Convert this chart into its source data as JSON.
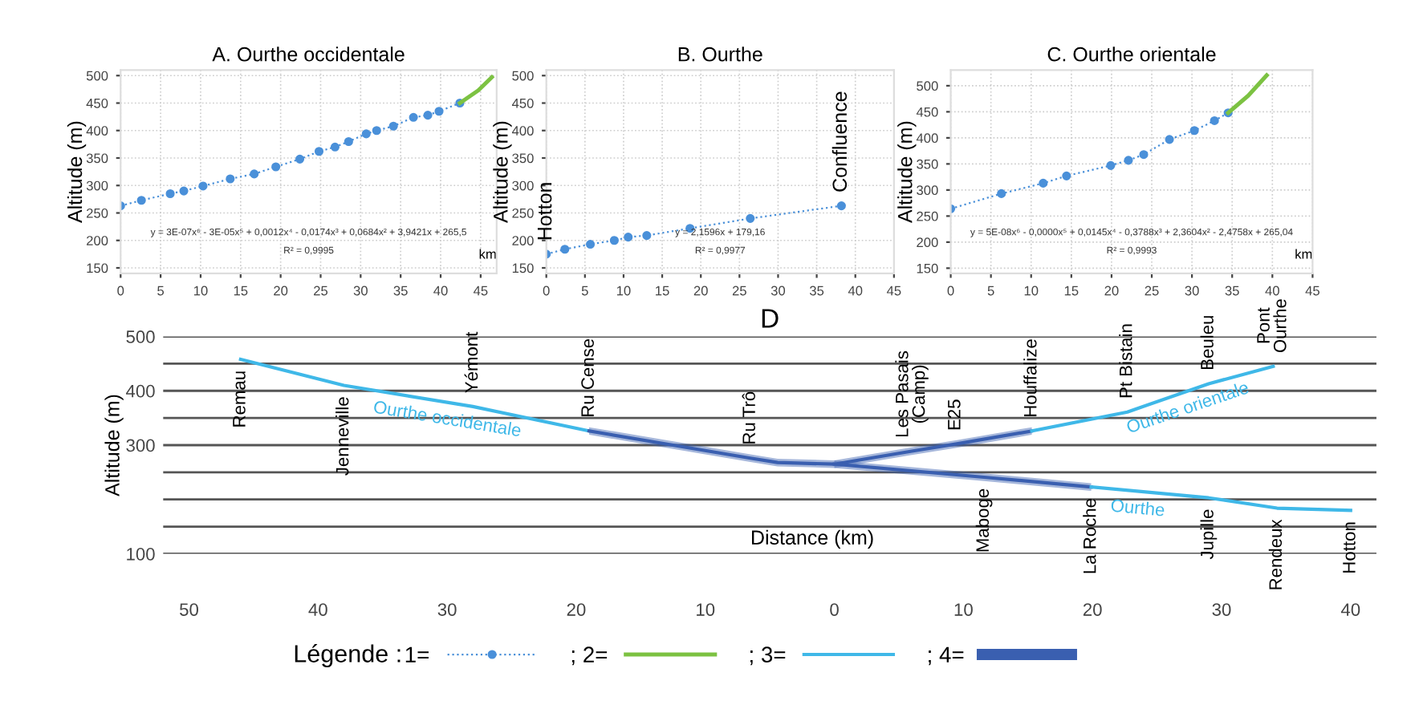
{
  "chart_data": [
    {
      "type": "line",
      "title": "A. Ourthe occidentale",
      "legend": "bottom",
      "xlabel": "km",
      "ylabel": "Altitude (m)",
      "xlim": [
        0,
        47
      ],
      "ylim": [
        140,
        510
      ],
      "xticks": [
        0,
        5,
        10,
        15,
        20,
        25,
        30,
        35,
        40,
        45
      ],
      "yticks": [
        150,
        200,
        250,
        300,
        350,
        400,
        450,
        500
      ],
      "grid": true,
      "annotations": [
        "y = 3E-07x⁶ - 3E-05x⁵ + 0,0012x⁴ - 0,0174x³ + 0,0684x² + 3,9421x + 265,5",
        "R² = 0,9995"
      ],
      "series": [
        {
          "name": "1=",
          "color": "#4a90d9",
          "marker": "circle",
          "line_style": "dotted",
          "x": [
            0,
            2.6,
            6.2,
            7.9,
            10.3,
            13.7,
            16.7,
            19.4,
            22.4,
            24.8,
            26.8,
            28.5,
            30.7,
            32.0,
            34.1,
            36.6,
            38.4,
            39.8,
            42.4
          ],
          "values": [
            263,
            273,
            285,
            290,
            299,
            312,
            321,
            334,
            348,
            362,
            370,
            380,
            394,
            400,
            408,
            424,
            428,
            435,
            450
          ]
        },
        {
          "name": "; 2=",
          "color": "#7cc242",
          "marker": "none",
          "line_style": "solid",
          "x": [
            42.4,
            44.7,
            46.4
          ],
          "values": [
            450,
            473,
            497
          ]
        }
      ]
    },
    {
      "type": "line",
      "title": "B. Ourthe",
      "ylabel": "Altitude (m)",
      "xlim": [
        0,
        45
      ],
      "ylim": [
        140,
        510
      ],
      "xticks": [
        0,
        5,
        10,
        15,
        20,
        25,
        30,
        35,
        40,
        45
      ],
      "yticks": [
        150,
        200,
        250,
        300,
        350,
        400,
        450,
        500
      ],
      "grid": true,
      "annotations": [
        {
          "text": "Hotton",
          "x": 0,
          "y": 175
        },
        {
          "text": "Confluence",
          "x": 38.2,
          "y": 263
        },
        "y = 2,1596x + 179,16",
        "R² = 0,9977"
      ],
      "series": [
        {
          "color": "#4a90d9",
          "marker": "circle",
          "line_style": "dotted",
          "x": [
            0,
            2.4,
            5.7,
            8.8,
            10.6,
            13.0,
            18.6,
            26.4,
            38.2
          ],
          "values": [
            175,
            184,
            193,
            200,
            206,
            209,
            222,
            240,
            263
          ]
        }
      ]
    },
    {
      "type": "line",
      "title": "C. Ourthe orientale",
      "xlabel": "km",
      "ylabel": "Altitude (m)",
      "xlim": [
        0,
        45
      ],
      "ylim": [
        140,
        530
      ],
      "xticks": [
        0,
        5,
        10,
        15,
        20,
        25,
        30,
        35,
        40,
        45
      ],
      "yticks": [
        150,
        200,
        250,
        300,
        350,
        400,
        450,
        500
      ],
      "grid": true,
      "annotations": [
        "y = 5E-08x⁶ - 0,0000x⁵ + 0,0145x⁴ - 0,3788x³ + 2,3604x² - 2,4758x + 265,04",
        "R² = 0,9993"
      ],
      "series": [
        {
          "color": "#4a90d9",
          "marker": "circle",
          "line_style": "dotted",
          "x": [
            0,
            6.3,
            11.5,
            14.4,
            19.9,
            22.1,
            24.0,
            27.2,
            30.3,
            32.8,
            34.5
          ],
          "values": [
            264,
            293,
            313,
            327,
            347,
            357,
            368,
            397,
            414,
            433,
            448
          ]
        },
        {
          "color": "#7cc242",
          "marker": "none",
          "line_style": "solid",
          "x": [
            34.5,
            37.0,
            39.3
          ],
          "values": [
            448,
            481,
            520
          ]
        }
      ]
    },
    {
      "type": "line",
      "title": "D",
      "xlabel": "Distance (km)",
      "ylabel": "Altitude (m)",
      "xlim": [
        -52,
        42
      ],
      "ylim": [
        100,
        500
      ],
      "grid": "y",
      "legend": "bottom",
      "legend_title": "Légende :",
      "xticks": [
        {
          "value": -50,
          "label": "50"
        },
        {
          "value": -40,
          "label": "40"
        },
        {
          "value": -30,
          "label": "30"
        },
        {
          "value": -20,
          "label": "20"
        },
        {
          "value": -10,
          "label": "10"
        },
        0,
        10,
        20,
        30,
        40
      ],
      "yticks": [
        100,
        {
          "value": 150,
          "label": null
        },
        {
          "value": 200,
          "label": null
        },
        {
          "value": 250,
          "label": null
        },
        300,
        {
          "value": 350,
          "label": null
        },
        400,
        {
          "value": 450,
          "label": null
        },
        500
      ],
      "annotations": [
        {
          "text": "Remau",
          "x": -46,
          "y": 458
        },
        {
          "text": "Jenneville",
          "x": -38,
          "y": 410
        },
        {
          "text": "Yémont",
          "x": -28,
          "y": 371
        },
        {
          "text": "Ru Cense",
          "x": -19,
          "y": 326
        },
        {
          "text": "Ru Trô",
          "x": -6.5,
          "y": 276
        },
        {
          "text": "Les Pasais\n(Camp)",
          "x": 6,
          "y": 289
        },
        {
          "text": "E25",
          "x": 9.4,
          "y": 302
        },
        {
          "text": "Houffalize",
          "x": 15.3,
          "y": 326
        },
        {
          "text": "Pt Bistain",
          "x": 22.7,
          "y": 361
        },
        {
          "text": "Beuleu",
          "x": 29,
          "y": 413
        },
        {
          "text": "Pont\nOurthe",
          "x": 34,
          "y": 445
        },
        {
          "text": "Maboge",
          "x": 11.6,
          "y": 241
        },
        {
          "text": "La Roche",
          "x": 19.9,
          "y": 223
        },
        {
          "text": "Jupille",
          "x": 29,
          "y": 203
        },
        {
          "text": "Rendeux",
          "x": 34.3,
          "y": 184
        },
        {
          "text": "Hotton",
          "x": 40,
          "y": 180
        },
        {
          "text": "Ourthe occidentale",
          "x": -30,
          "y": 379
        },
        {
          "text": "Ourthe orientale",
          "x": 27.4,
          "y": 400
        },
        {
          "text": "Ourthe",
          "x": 23.5,
          "y": 215
        }
      ],
      "series": [
        {
          "name": "; 3=",
          "color": "#3fb8e8",
          "x": [
            -46,
            -38,
            -28,
            -19
          ],
          "values": [
            458,
            410,
            371,
            326
          ]
        },
        {
          "name": "; 4=",
          "color": "#3a5fb0",
          "x": [
            -19,
            -6.5,
            -4.4,
            0,
            6,
            9.4,
            15.3
          ],
          "values": [
            326,
            276,
            268,
            265,
            289,
            302,
            326
          ],
          "lower": [
            319,
            269,
            261,
            258,
            282,
            295,
            319
          ],
          "upper": [
            333,
            283,
            275,
            272,
            296,
            309,
            333
          ]
        },
        {
          "color": "#3fb8e8",
          "x": [
            15.3,
            22.7,
            29,
            34
          ],
          "values": [
            326,
            361,
            413,
            445
          ]
        },
        {
          "color": "#3a5fb0",
          "x": [
            0,
            11.6,
            19.9
          ],
          "values": [
            265,
            241,
            223
          ],
          "lower": [
            258,
            234,
            216
          ],
          "upper": [
            272,
            248,
            230
          ]
        },
        {
          "color": "#3fb8e8",
          "x": [
            19.9,
            29,
            34.3,
            40
          ],
          "values": [
            223,
            203,
            184,
            180
          ]
        }
      ]
    }
  ]
}
